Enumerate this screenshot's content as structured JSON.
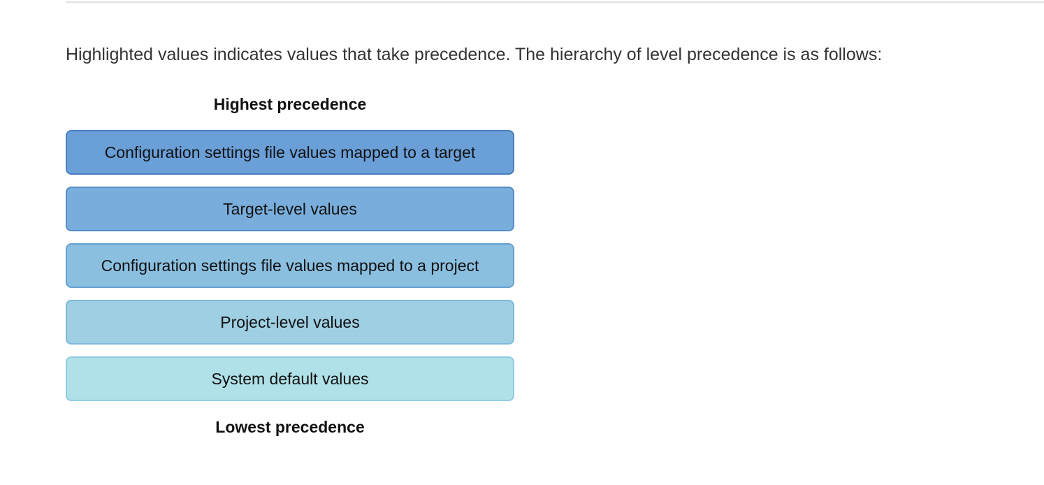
{
  "intro": "Highlighted values indicates values that take precedence. The hierarchy of level precedence is as follows:",
  "diagram": {
    "top_label": "Highest precedence",
    "bottom_label": "Lowest precedence",
    "levels": [
      "Configuration settings file values mapped to a target",
      "Target-level values",
      "Configuration settings file values mapped to a project",
      "Project-level values",
      "System default values"
    ]
  }
}
